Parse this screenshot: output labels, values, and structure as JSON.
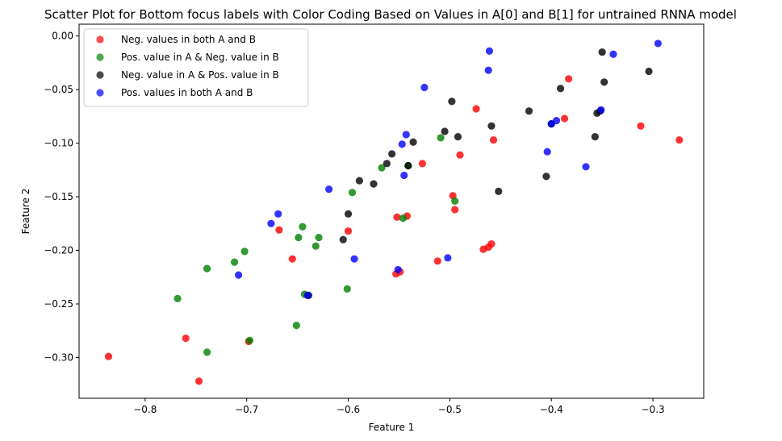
{
  "chart_data": {
    "type": "scatter",
    "title": "Scatter Plot for Bottom focus labels with Color Coding Based on Values in A[0] and B[1] for untrained RNNA model",
    "xlabel": "Feature 1",
    "ylabel": "Feature 2",
    "xlim": [
      -0.865,
      -0.25
    ],
    "ylim": [
      -0.338,
      0.011
    ],
    "xticks": [
      -0.8,
      -0.7,
      -0.6,
      -0.5,
      -0.4,
      -0.3
    ],
    "xtick_labels": [
      "−0.8",
      "−0.7",
      "−0.6",
      "−0.5",
      "−0.4",
      "−0.3"
    ],
    "yticks": [
      0.0,
      -0.05,
      -0.1,
      -0.15,
      -0.2,
      -0.25,
      -0.3
    ],
    "ytick_labels": [
      "0.00",
      "−0.05",
      "−0.10",
      "−0.15",
      "−0.20",
      "−0.25",
      "−0.30"
    ],
    "grid": false,
    "legend_position": "top-left",
    "series": [
      {
        "name": "Neg. values in both A and B",
        "color": "#ff0000",
        "points": [
          [
            -0.836,
            -0.299
          ],
          [
            -0.76,
            -0.282
          ],
          [
            -0.747,
            -0.322
          ],
          [
            -0.698,
            -0.285
          ],
          [
            -0.668,
            -0.181
          ],
          [
            -0.655,
            -0.208
          ],
          [
            -0.6,
            -0.182
          ],
          [
            -0.553,
            -0.222
          ],
          [
            -0.549,
            -0.22
          ],
          [
            -0.552,
            -0.169
          ],
          [
            -0.542,
            -0.168
          ],
          [
            -0.527,
            -0.119
          ],
          [
            -0.512,
            -0.21
          ],
          [
            -0.497,
            -0.149
          ],
          [
            -0.495,
            -0.162
          ],
          [
            -0.49,
            -0.111
          ],
          [
            -0.474,
            -0.068
          ],
          [
            -0.467,
            -0.199
          ],
          [
            -0.462,
            -0.197
          ],
          [
            -0.459,
            -0.194
          ],
          [
            -0.457,
            -0.097
          ],
          [
            -0.387,
            -0.077
          ],
          [
            -0.383,
            -0.04
          ],
          [
            -0.312,
            -0.084
          ],
          [
            -0.274,
            -0.097
          ]
        ]
      },
      {
        "name": "Pos. value in A & Neg. value in B",
        "color": "#008000",
        "points": [
          [
            -0.768,
            -0.245
          ],
          [
            -0.739,
            -0.217
          ],
          [
            -0.739,
            -0.295
          ],
          [
            -0.712,
            -0.211
          ],
          [
            -0.702,
            -0.201
          ],
          [
            -0.697,
            -0.284
          ],
          [
            -0.651,
            -0.27
          ],
          [
            -0.649,
            -0.188
          ],
          [
            -0.645,
            -0.178
          ],
          [
            -0.643,
            -0.241
          ],
          [
            -0.632,
            -0.196
          ],
          [
            -0.629,
            -0.188
          ],
          [
            -0.601,
            -0.236
          ],
          [
            -0.596,
            -0.146
          ],
          [
            -0.567,
            -0.123
          ],
          [
            -0.546,
            -0.17
          ],
          [
            -0.541,
            -0.121
          ],
          [
            -0.509,
            -0.095
          ],
          [
            -0.495,
            -0.154
          ]
        ]
      },
      {
        "name": "Neg. value in A & Pos. value in B",
        "color": "#000000",
        "points": [
          [
            -0.639,
            -0.242
          ],
          [
            -0.605,
            -0.19
          ],
          [
            -0.6,
            -0.166
          ],
          [
            -0.589,
            -0.135
          ],
          [
            -0.575,
            -0.138
          ],
          [
            -0.562,
            -0.119
          ],
          [
            -0.557,
            -0.11
          ],
          [
            -0.541,
            -0.121
          ],
          [
            -0.536,
            -0.099
          ],
          [
            -0.498,
            -0.061
          ],
          [
            -0.492,
            -0.094
          ],
          [
            -0.505,
            -0.089
          ],
          [
            -0.459,
            -0.084
          ],
          [
            -0.452,
            -0.145
          ],
          [
            -0.422,
            -0.07
          ],
          [
            -0.405,
            -0.131
          ],
          [
            -0.4,
            -0.082
          ],
          [
            -0.391,
            -0.049
          ],
          [
            -0.357,
            -0.094
          ],
          [
            -0.355,
            -0.072
          ],
          [
            -0.352,
            -0.07
          ],
          [
            -0.35,
            -0.015
          ],
          [
            -0.348,
            -0.043
          ],
          [
            -0.304,
            -0.033
          ]
        ]
      },
      {
        "name": "Pos. values in both A and B",
        "color": "#0000ff",
        "points": [
          [
            -0.708,
            -0.223
          ],
          [
            -0.676,
            -0.175
          ],
          [
            -0.669,
            -0.166
          ],
          [
            -0.64,
            -0.242
          ],
          [
            -0.619,
            -0.143
          ],
          [
            -0.594,
            -0.208
          ],
          [
            -0.551,
            -0.218
          ],
          [
            -0.547,
            -0.101
          ],
          [
            -0.545,
            -0.13
          ],
          [
            -0.543,
            -0.092
          ],
          [
            -0.525,
            -0.048
          ],
          [
            -0.502,
            -0.207
          ],
          [
            -0.462,
            -0.032
          ],
          [
            -0.461,
            -0.014
          ],
          [
            -0.404,
            -0.108
          ],
          [
            -0.4,
            -0.082
          ],
          [
            -0.395,
            -0.079
          ],
          [
            -0.366,
            -0.122
          ],
          [
            -0.351,
            -0.069
          ],
          [
            -0.339,
            -0.017
          ],
          [
            -0.295,
            -0.007
          ]
        ]
      }
    ]
  }
}
